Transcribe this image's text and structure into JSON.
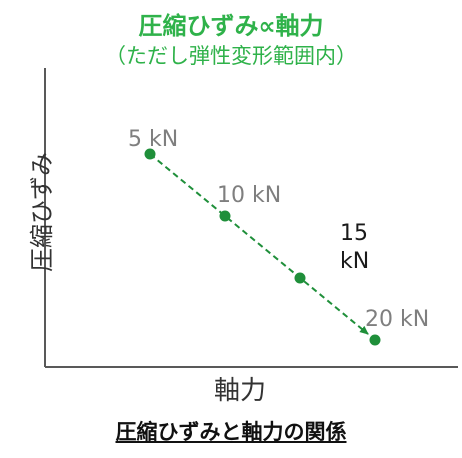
{
  "header": {
    "title": "圧縮ひずみ∝軸力",
    "subtitle": "（ただし弾性変形範囲内）"
  },
  "caption": "圧縮ひずみと軸力の関係",
  "colors": {
    "title": "#2fb24a",
    "series": "#1f8f3a",
    "label_gray": "#7f7f7f",
    "label_dark": "#1a1a1a",
    "axis": "#595959"
  },
  "chart_data": {
    "type": "scatter",
    "xlabel": "軸力",
    "ylabel": "圧縮ひずみ",
    "x_ticks_visible": false,
    "y_ticks_visible": false,
    "grid": false,
    "line_style": "dashed with arrowhead",
    "points": [
      {
        "x": 5,
        "y": 5,
        "label": "5 kN",
        "label_color": "gray"
      },
      {
        "x": 10,
        "y": 10,
        "label": "10 kN",
        "label_color": "gray"
      },
      {
        "x": 15,
        "y": 15,
        "label": "15\nkN",
        "label_color": "dark"
      },
      {
        "x": 20,
        "y": 20,
        "label": "20 kN",
        "label_color": "gray"
      }
    ]
  }
}
